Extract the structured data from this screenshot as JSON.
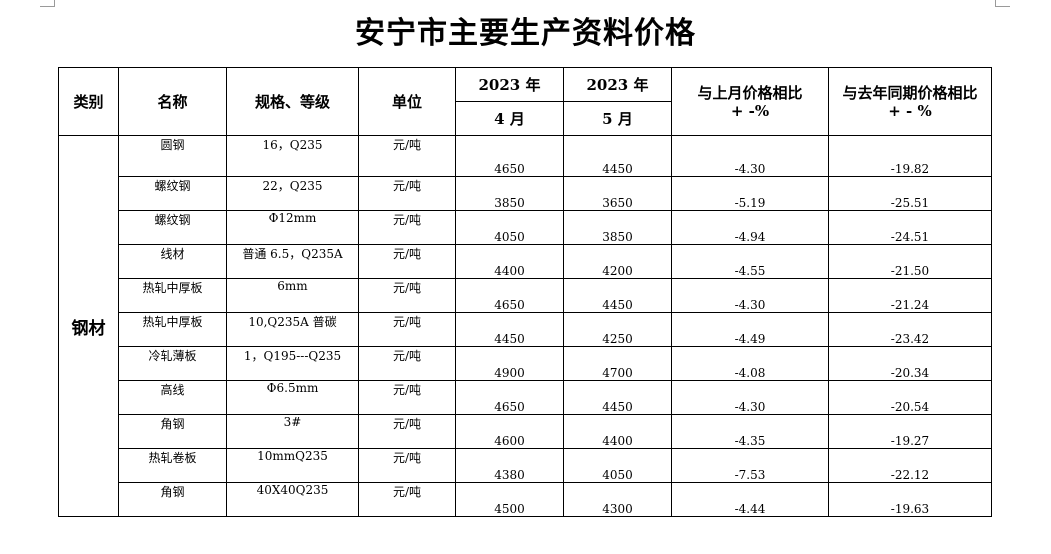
{
  "title": "安宁市主要生产资料价格",
  "headers": {
    "category": "类别",
    "name": "名称",
    "spec": "规格、等级",
    "unit": "单位",
    "year_april": "2023 年",
    "year_may": "2023 年",
    "april": "4 月",
    "may": "5 月",
    "mom_line1": "与上月价格相比",
    "mom_line2": "+ -%",
    "yoy_line1": "与去年同期价格相比",
    "yoy_line2": "+ - %"
  },
  "category": "钢材",
  "rows": [
    {
      "name": "圆钢",
      "spec": "16，Q235",
      "unit": "元/吨",
      "april": "4650",
      "may": "4450",
      "mom": "-4.30",
      "yoy": "-19.82"
    },
    {
      "name": "螺纹钢",
      "spec": "22，Q235",
      "unit": "元/吨",
      "april": "3850",
      "may": "3650",
      "mom": "-5.19",
      "yoy": "-25.51"
    },
    {
      "name": "螺纹钢",
      "spec": "Φ12mm",
      "unit": "元/吨",
      "april": "4050",
      "may": "3850",
      "mom": "-4.94",
      "yoy": "-24.51"
    },
    {
      "name": "线材",
      "spec": "普通 6.5，Q235A",
      "unit": "元/吨",
      "april": "4400",
      "may": "4200",
      "mom": "-4.55",
      "yoy": "-21.50"
    },
    {
      "name": "热轧中厚板",
      "spec": "6mm",
      "unit": "元/吨",
      "april": "4650",
      "may": "4450",
      "mom": "-4.30",
      "yoy": "-21.24"
    },
    {
      "name": "热轧中厚板",
      "spec": "10,Q235A 普碳",
      "unit": "元/吨",
      "april": "4450",
      "may": "4250",
      "mom": "-4.49",
      "yoy": "-23.42"
    },
    {
      "name": "冷轧薄板",
      "spec": "1，Q195---Q235",
      "unit": "元/吨",
      "april": "4900",
      "may": "4700",
      "mom": "-4.08",
      "yoy": "-20.34"
    },
    {
      "name": "高线",
      "spec": "Φ6.5mm",
      "unit": "元/吨",
      "april": "4650",
      "may": "4450",
      "mom": "-4.30",
      "yoy": "-20.54"
    },
    {
      "name": "角钢",
      "spec": "3#",
      "unit": "元/吨",
      "april": "4600",
      "may": "4400",
      "mom": "-4.35",
      "yoy": "-19.27"
    },
    {
      "name": "热轧卷板",
      "spec": "10mmQ235",
      "unit": "元/吨",
      "april": "4380",
      "may": "4050",
      "mom": "-7.53",
      "yoy": "-22.12"
    },
    {
      "name": "角钢",
      "spec": "40X40Q235",
      "unit": "元/吨",
      "april": "4500",
      "may": "4300",
      "mom": "-4.44",
      "yoy": "-19.63"
    }
  ]
}
